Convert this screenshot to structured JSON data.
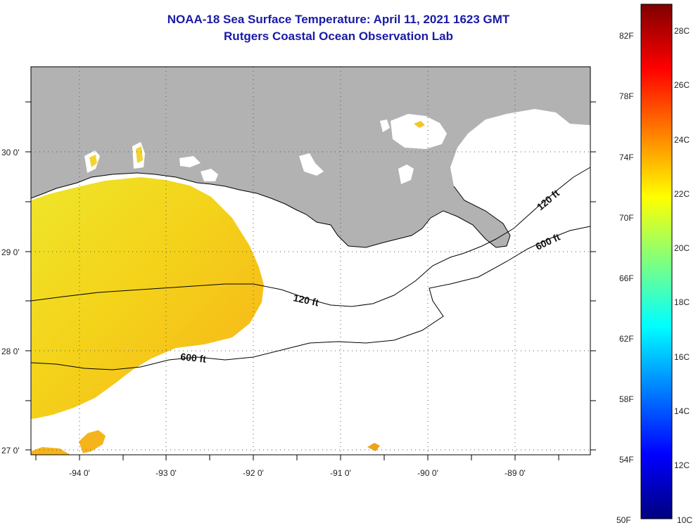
{
  "header": {
    "title": "NOAA-18 Sea Surface Temperature:  April 11, 2021 1623 GMT",
    "subtitle": "Rutgers Coastal Ocean Observation Lab"
  },
  "map": {
    "lon_labels": [
      "-94 0'",
      "-93 0'",
      "-92 0'",
      "-91 0'",
      "-90 0'",
      "-89 0'"
    ],
    "lat_labels": [
      "30 0'",
      "29 0'",
      "28 0'",
      "27 0'"
    ],
    "contour_labels": [
      "120 ft",
      "600 ft",
      "120 ft",
      "600 ft"
    ],
    "colors": {
      "land": "#b2b2b2",
      "cloud": "#ffffff",
      "sst_warm": "#f7b218",
      "sst_mid": "#f4d21a",
      "sst_cool": "#eee62a"
    }
  },
  "colorbar": {
    "fahrenheit": [
      "82F",
      "78F",
      "74F",
      "70F",
      "66F",
      "62F",
      "58F",
      "54F",
      "50F"
    ],
    "celsius": [
      "28C",
      "26C",
      "24C",
      "22C",
      "20C",
      "18C",
      "16C",
      "14C",
      "12C",
      "10C"
    ],
    "stops": [
      "#00007f",
      "#0000ff",
      "#007fff",
      "#00ffff",
      "#7fff7f",
      "#ffff00",
      "#ff7f00",
      "#ff0000",
      "#7f0000"
    ]
  }
}
